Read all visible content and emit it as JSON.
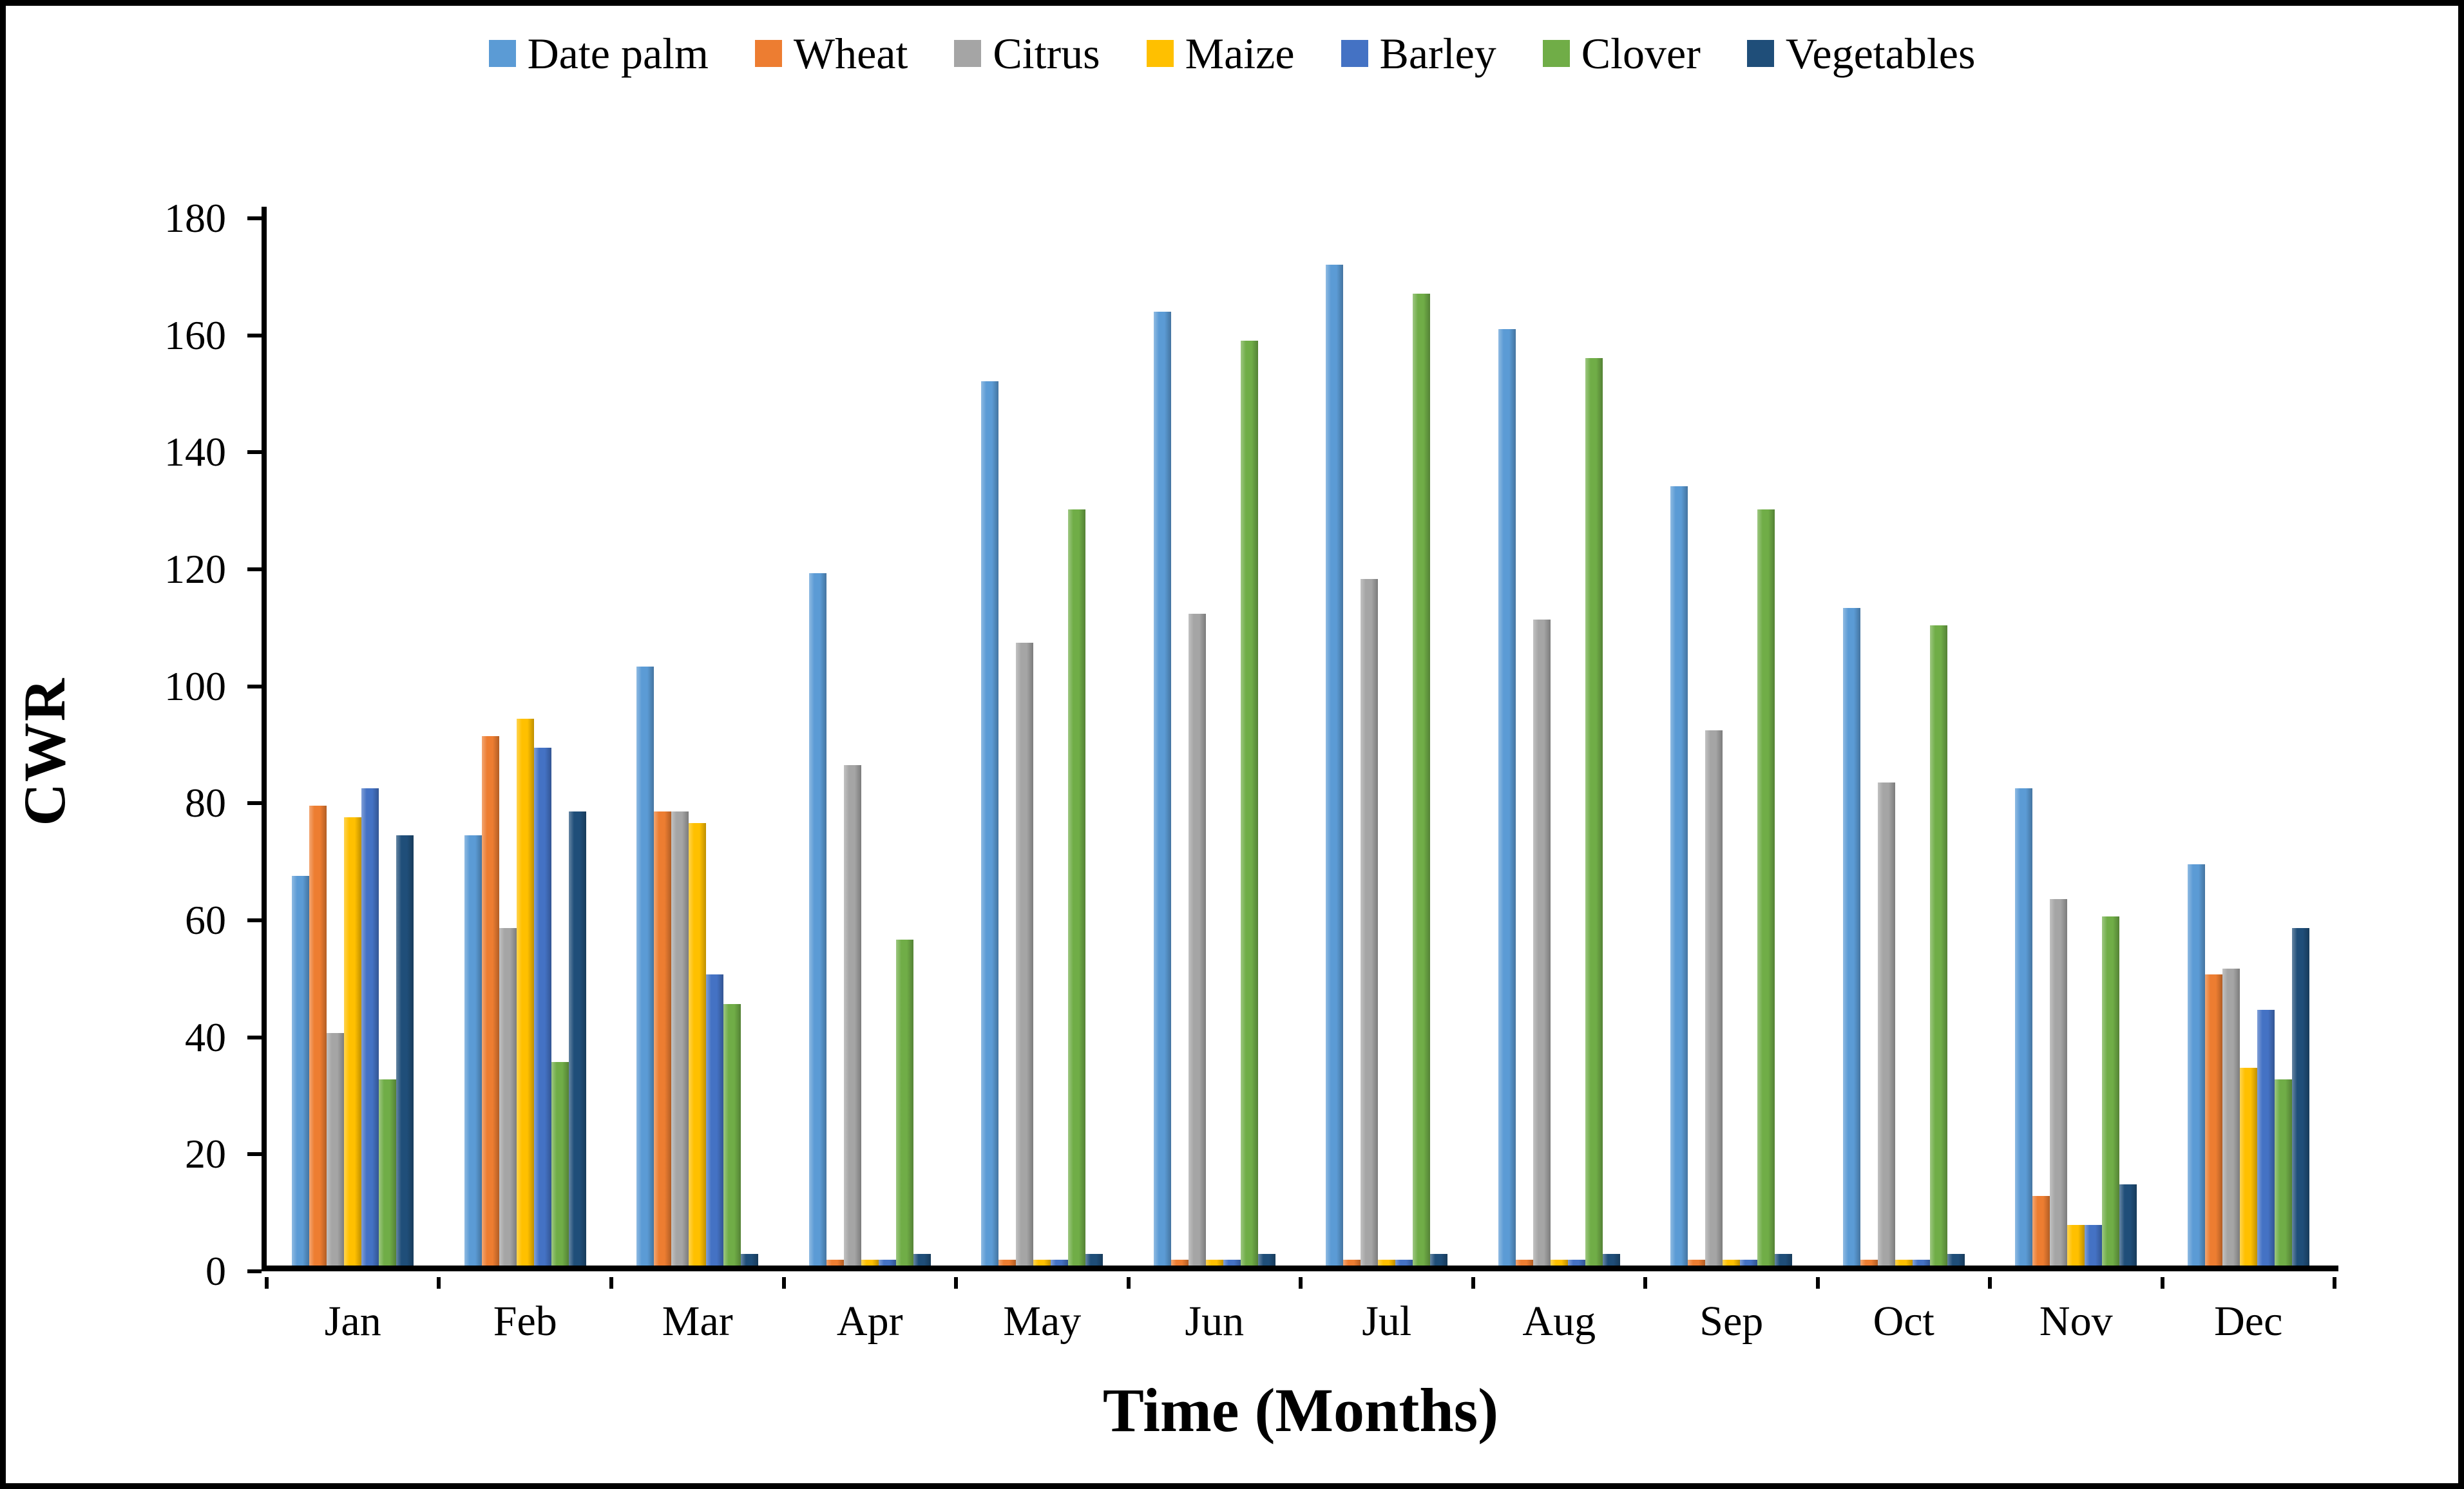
{
  "chart_data": {
    "type": "bar",
    "title": "",
    "xlabel": "Time (Months)",
    "ylabel": "CWR",
    "ylim": [
      0,
      180
    ],
    "yticks": [
      0,
      20,
      40,
      60,
      80,
      100,
      120,
      140,
      160,
      180
    ],
    "grid": false,
    "legend_position": "top",
    "categories": [
      "Jan",
      "Feb",
      "Mar",
      "Apr",
      "May",
      "Jun",
      "Jul",
      "Aug",
      "Sep",
      "Oct",
      "Nov",
      "Dec"
    ],
    "series": [
      {
        "name": "Date palm",
        "color": "#5B9BD5",
        "values": [
          67,
          74,
          103,
          119,
          152,
          164,
          172,
          161,
          134,
          113,
          82,
          69
        ]
      },
      {
        "name": "Wheat",
        "color": "#ED7D31",
        "values": [
          79,
          91,
          78,
          1,
          1,
          1,
          1,
          1,
          1,
          1,
          12,
          50
        ]
      },
      {
        "name": "Citrus",
        "color": "#A5A5A5",
        "values": [
          40,
          58,
          78,
          86,
          107,
          112,
          118,
          111,
          92,
          83,
          63,
          51
        ]
      },
      {
        "name": "Maize",
        "color": "#FFC000",
        "values": [
          77,
          94,
          76,
          1,
          1,
          1,
          1,
          1,
          1,
          1,
          7,
          34
        ]
      },
      {
        "name": "Barley",
        "color": "#4472C4",
        "values": [
          82,
          89,
          50,
          1,
          1,
          1,
          1,
          1,
          1,
          1,
          7,
          44
        ]
      },
      {
        "name": "Clover",
        "color": "#70AD47",
        "values": [
          32,
          35,
          45,
          56,
          130,
          159,
          167,
          156,
          130,
          110,
          60,
          32
        ]
      },
      {
        "name": "Vegetables",
        "color": "#1F4E79",
        "values": [
          74,
          78,
          2,
          2,
          2,
          2,
          2,
          2,
          2,
          2,
          14,
          58
        ]
      }
    ]
  }
}
